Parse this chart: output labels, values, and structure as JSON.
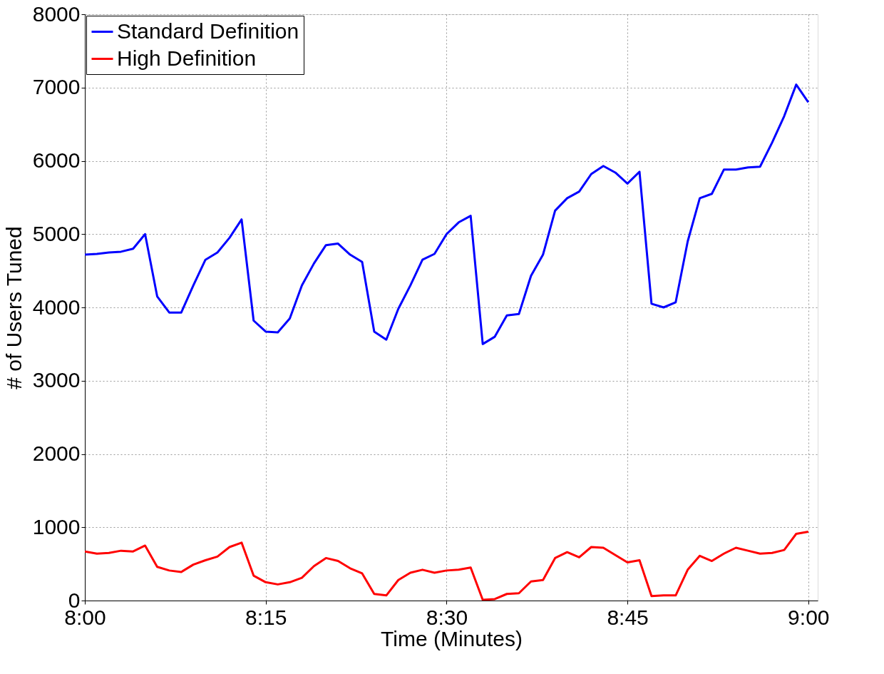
{
  "chart_data": {
    "type": "line",
    "xlabel": "Time (Minutes)",
    "ylabel": "# of Users Tuned",
    "x": [
      8.0,
      8.0167,
      8.0333,
      8.05,
      8.0667,
      8.0833,
      8.1,
      8.1167,
      8.1333,
      8.15,
      8.1667,
      8.1833,
      8.2,
      8.2167,
      8.2333,
      8.25,
      8.2667,
      8.2833,
      8.3,
      8.3167,
      8.3333,
      8.35,
      8.3667,
      8.3833,
      8.4,
      8.4167,
      8.4333,
      8.45,
      8.4667,
      8.4833,
      8.5,
      8.5167,
      8.5333,
      8.55,
      8.5667,
      8.5833,
      8.6,
      8.6167,
      8.6333,
      8.65,
      8.6667,
      8.6833,
      8.7,
      8.7167,
      8.7333,
      8.75,
      8.7667,
      8.7833,
      8.8,
      8.8167,
      8.8333,
      8.85,
      8.8667,
      8.8833,
      8.9,
      8.9167,
      8.9333,
      8.95,
      8.9667,
      8.9833,
      9.0
    ],
    "series": [
      {
        "name": "Standard Definition",
        "color": "#0000ff",
        "values": [
          4720,
          4730,
          4750,
          4760,
          4800,
          5000,
          4150,
          3930,
          3930,
          4300,
          4650,
          4750,
          4950,
          5200,
          3820,
          3670,
          3660,
          3850,
          4300,
          4600,
          4850,
          4870,
          4720,
          4620,
          3670,
          3560,
          3980,
          4300,
          4650,
          4730,
          5000,
          5160,
          5250,
          3500,
          3600,
          3890,
          3910,
          4430,
          4720,
          5320,
          5490,
          5580,
          5820,
          5930,
          5840,
          5690,
          5850,
          4050,
          4000,
          4070,
          4900,
          5490,
          5550,
          5880,
          5880,
          5910,
          5920,
          6250,
          6610,
          7040,
          6800
        ]
      },
      {
        "name": "High Definition",
        "color": "#ff0000",
        "values": [
          670,
          640,
          650,
          680,
          670,
          750,
          460,
          410,
          390,
          490,
          550,
          600,
          730,
          790,
          340,
          250,
          220,
          250,
          310,
          470,
          580,
          540,
          440,
          370,
          90,
          70,
          280,
          380,
          420,
          380,
          410,
          420,
          450,
          10,
          20,
          90,
          100,
          260,
          280,
          580,
          660,
          590,
          730,
          720,
          620,
          520,
          550,
          60,
          70,
          70,
          420,
          610,
          540,
          640,
          720,
          680,
          640,
          650,
          690,
          910,
          940
        ]
      }
    ],
    "xlim": [
      8.0,
      9.013
    ],
    "xticks": [
      {
        "value": 8.0,
        "label": "8:00"
      },
      {
        "value": 8.25,
        "label": "8:15"
      },
      {
        "value": 8.5,
        "label": "8:30"
      },
      {
        "value": 8.75,
        "label": "8:45"
      },
      {
        "value": 9.0,
        "label": "9:00"
      }
    ],
    "ylim": [
      0,
      8000
    ],
    "yticks": [
      0,
      1000,
      2000,
      3000,
      4000,
      5000,
      6000,
      7000,
      8000
    ],
    "grid": true,
    "legend": "top left",
    "marker": "none",
    "line_style": "solid"
  }
}
